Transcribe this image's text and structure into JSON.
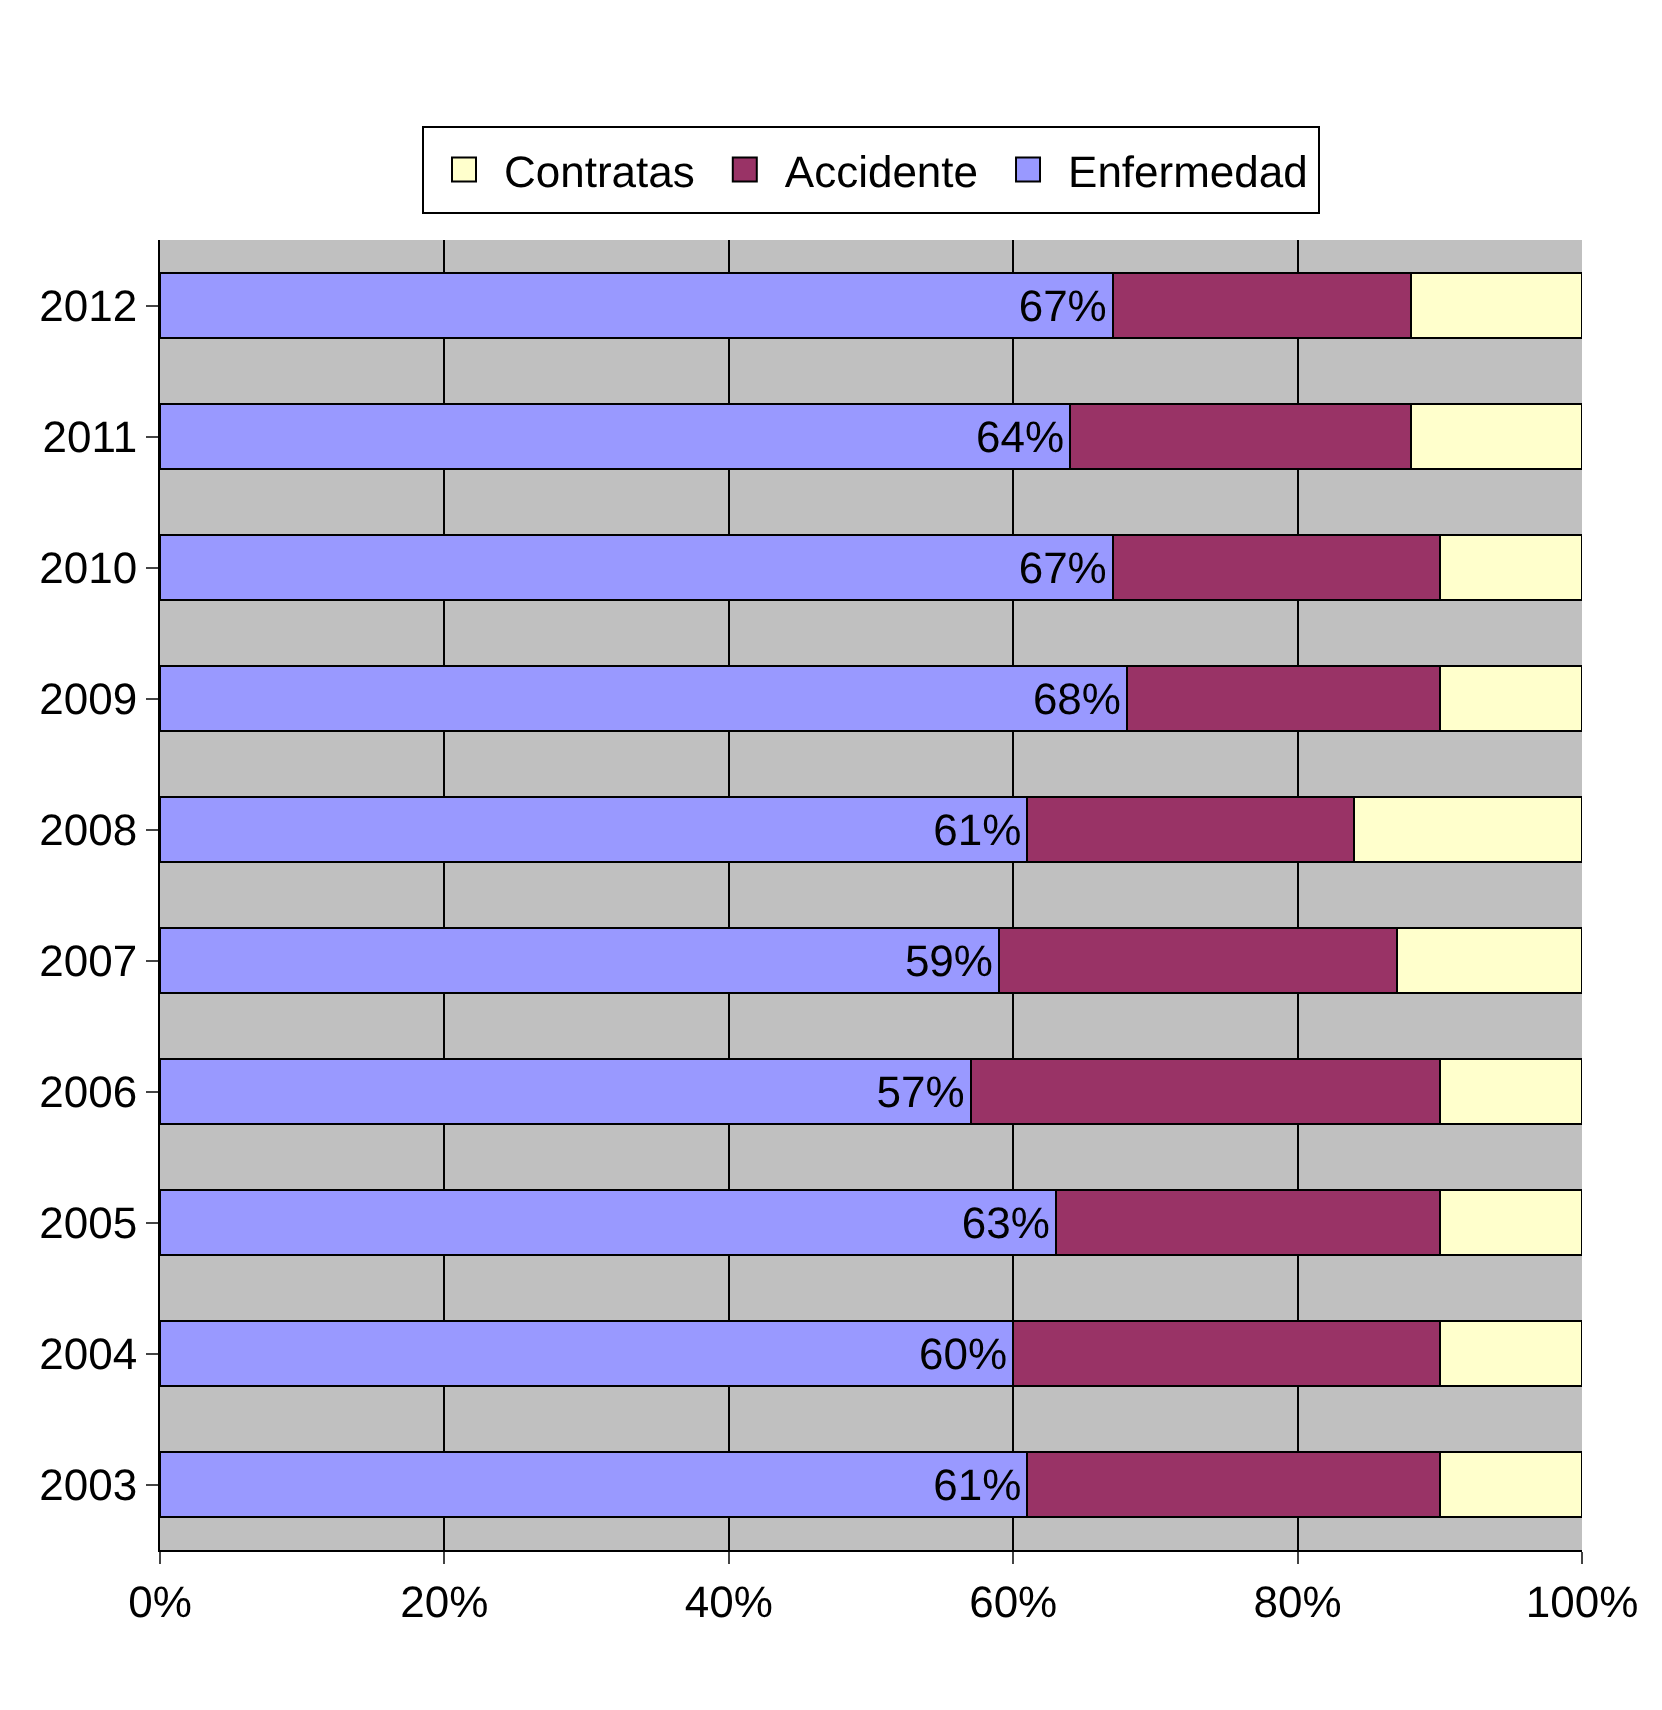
{
  "chart_data": {
    "type": "bar",
    "orientation": "horizontal",
    "stacked": true,
    "categories": [
      "2012",
      "2011",
      "2010",
      "2009",
      "2008",
      "2007",
      "2006",
      "2005",
      "2004",
      "2003"
    ],
    "series": [
      {
        "name": "Enfermedad",
        "color": "#9999ff",
        "values": [
          67,
          64,
          67,
          68,
          61,
          59,
          57,
          63,
          60,
          61
        ],
        "value_labels": [
          "67%",
          "64%",
          "67%",
          "68%",
          "61%",
          "59%",
          "57%",
          "63%",
          "60%",
          "61%"
        ]
      },
      {
        "name": "Accidente",
        "color": "#993366",
        "values": [
          21,
          24,
          23,
          22,
          23,
          28,
          33,
          27,
          30,
          29
        ]
      },
      {
        "name": "Contratas",
        "color": "#ffffcc",
        "values": [
          12,
          12,
          10,
          10,
          16,
          13,
          10,
          10,
          10,
          10
        ]
      }
    ],
    "xlim": [
      0,
      100
    ],
    "xticks": [
      {
        "value": 0,
        "label": "0%"
      },
      {
        "value": 20,
        "label": "20%"
      },
      {
        "value": 40,
        "label": "40%"
      },
      {
        "value": 60,
        "label": "60%"
      },
      {
        "value": 80,
        "label": "80%"
      },
      {
        "value": 100,
        "label": "100%"
      }
    ],
    "grid": "x",
    "legend": "top"
  }
}
